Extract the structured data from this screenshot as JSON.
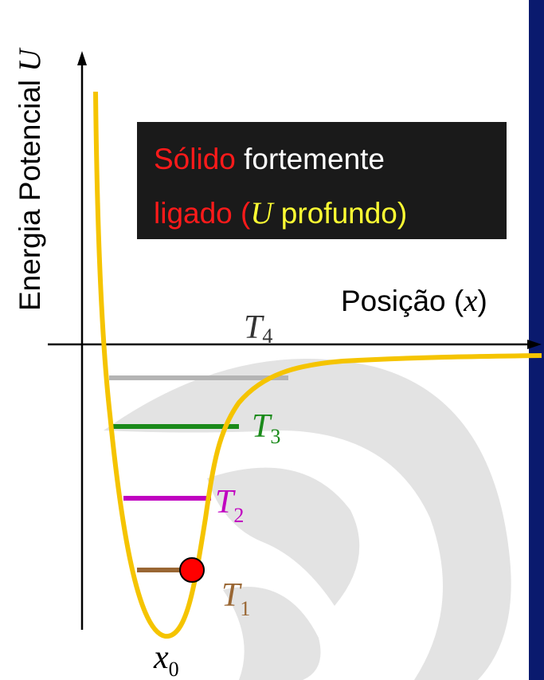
{
  "axes": {
    "y_label": [
      "Energia Potencial ",
      "U"
    ],
    "x_label": [
      "Posição (",
      "x",
      ")"
    ]
  },
  "box": {
    "line1": [
      "Sólido",
      " fortemente"
    ],
    "line2": [
      "ligado (",
      "U",
      " profundo)"
    ]
  },
  "levels": [
    {
      "symbol": "T",
      "sub": "4"
    },
    {
      "symbol": "T",
      "sub": "3"
    },
    {
      "symbol": "T",
      "sub": "2"
    },
    {
      "symbol": "T",
      "sub": "1"
    }
  ],
  "minimum": {
    "symbol": "x",
    "sub": "0"
  }
}
